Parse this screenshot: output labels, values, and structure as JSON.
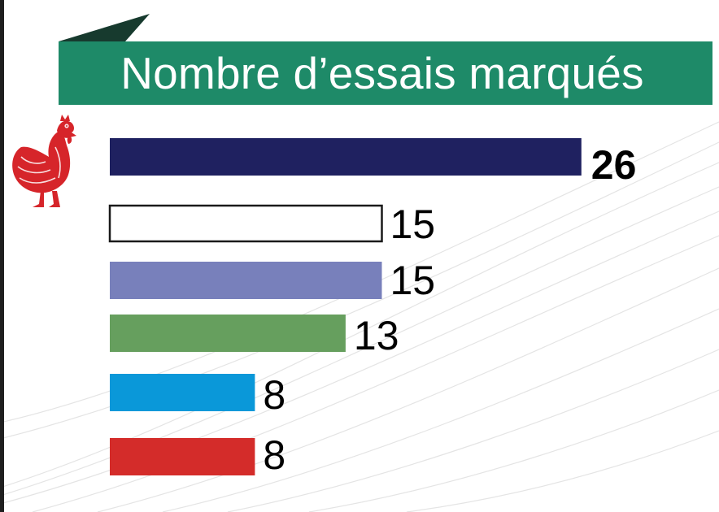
{
  "title": "Nombre d’essais marqués",
  "colors": {
    "banner": "#1e8a68",
    "banner_tab": "#173a2e",
    "rooster": "#d6252a",
    "text": "#000000"
  },
  "icons": {
    "team_logo": "rooster-icon"
  },
  "chart_data": {
    "type": "bar",
    "orientation": "horizontal",
    "title": "Nombre d’essais marqués",
    "grid": false,
    "categories": [
      "",
      "",
      "",
      "",
      "",
      ""
    ],
    "values": [
      26,
      15,
      15,
      13,
      8,
      8
    ],
    "value_labels": [
      "26",
      "15",
      "15",
      "13",
      "8",
      "8"
    ],
    "bar_colors": [
      "#1f2160",
      "#ffffff",
      "#7880bb",
      "#669f5e",
      "#0a98d9",
      "#d42c2a"
    ],
    "bar_outline": [
      false,
      true,
      false,
      false,
      false,
      false
    ],
    "bold_label": [
      true,
      false,
      false,
      false,
      false,
      false
    ],
    "xlim": [
      0,
      26
    ]
  }
}
